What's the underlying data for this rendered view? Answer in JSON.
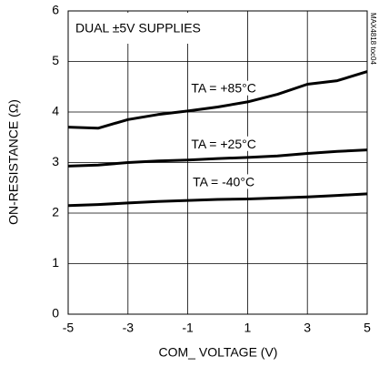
{
  "chart_data": {
    "type": "line",
    "x_label": "COM_ VOLTAGE (V)",
    "y_label": "ON-RESISTANCE (Ω)",
    "annotations": [
      "DUAL ±5V SUPPLIES",
      "MAX4818 toc04"
    ],
    "x": [
      -5,
      -4,
      -3,
      -2,
      -1,
      0,
      1,
      2,
      3,
      4,
      5
    ],
    "series": [
      {
        "name": "TA = +85°C",
        "color": "#000000",
        "values": [
          3.7,
          3.68,
          3.85,
          3.95,
          4.02,
          4.1,
          4.2,
          4.35,
          4.55,
          4.62,
          4.8
        ]
      },
      {
        "name": "TA = +25°C",
        "color": "#000000",
        "values": [
          2.93,
          2.95,
          3.0,
          3.03,
          3.05,
          3.08,
          3.1,
          3.13,
          3.18,
          3.22,
          3.25
        ]
      },
      {
        "name": "TA = -40°C",
        "color": "#000000",
        "values": [
          2.15,
          2.17,
          2.2,
          2.23,
          2.25,
          2.27,
          2.28,
          2.3,
          2.32,
          2.35,
          2.38
        ]
      }
    ],
    "xlim": [
      -5,
      5
    ],
    "xticks": [
      -5,
      -3,
      -1,
      1,
      3,
      5
    ],
    "ylim": [
      0,
      6
    ],
    "yticks": [
      0,
      1,
      2,
      3,
      4,
      5,
      6
    ],
    "grid": true
  }
}
